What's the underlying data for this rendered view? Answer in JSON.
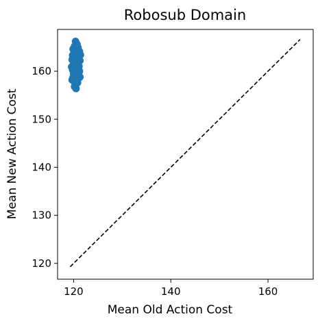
{
  "chart_data": {
    "type": "scatter",
    "title": "Robosub Domain",
    "xlabel": "Mean Old Action Cost",
    "ylabel": "Mean New Action Cost",
    "xlim": [
      116.7,
      169.3
    ],
    "ylim": [
      116.7,
      168.7
    ],
    "xticks": [
      120,
      140,
      160
    ],
    "yticks": [
      120,
      130,
      140,
      150,
      160
    ],
    "grid": false,
    "marker_color": "#1f77b4",
    "reference_line": {
      "style": "dashed",
      "color": "#000000",
      "from": [
        119.3,
        119.3
      ],
      "to": [
        166.6,
        166.6
      ]
    },
    "series": [
      {
        "points": [
          [
            120.4,
            166.2
          ],
          [
            120.7,
            165.6
          ],
          [
            120.2,
            165.2
          ],
          [
            120.9,
            164.9
          ],
          [
            119.9,
            164.6
          ],
          [
            120.5,
            164.4
          ],
          [
            121.2,
            164.1
          ],
          [
            120.1,
            163.8
          ],
          [
            120.8,
            163.6
          ],
          [
            119.8,
            163.3
          ],
          [
            121.0,
            163.1
          ],
          [
            120.3,
            162.9
          ],
          [
            120.6,
            162.6
          ],
          [
            119.7,
            162.4
          ],
          [
            121.3,
            162.2
          ],
          [
            120.0,
            161.9
          ],
          [
            120.9,
            161.7
          ],
          [
            120.4,
            161.4
          ],
          [
            119.9,
            161.2
          ],
          [
            121.1,
            161.0
          ],
          [
            120.2,
            160.7
          ],
          [
            120.7,
            160.5
          ],
          [
            119.8,
            160.3
          ],
          [
            121.2,
            160.0
          ],
          [
            120.5,
            159.8
          ],
          [
            120.0,
            159.5
          ],
          [
            120.9,
            159.3
          ],
          [
            120.3,
            159.0
          ],
          [
            119.9,
            158.7
          ],
          [
            121.0,
            158.5
          ],
          [
            120.6,
            158.2
          ],
          [
            120.1,
            157.9
          ],
          [
            120.8,
            157.6
          ],
          [
            120.4,
            157.2
          ],
          [
            120.2,
            156.8
          ],
          [
            120.5,
            156.4
          ],
          [
            121.4,
            163.4
          ],
          [
            119.6,
            160.9
          ],
          [
            121.3,
            158.8
          ],
          [
            119.7,
            158.2
          ]
        ]
      }
    ]
  }
}
